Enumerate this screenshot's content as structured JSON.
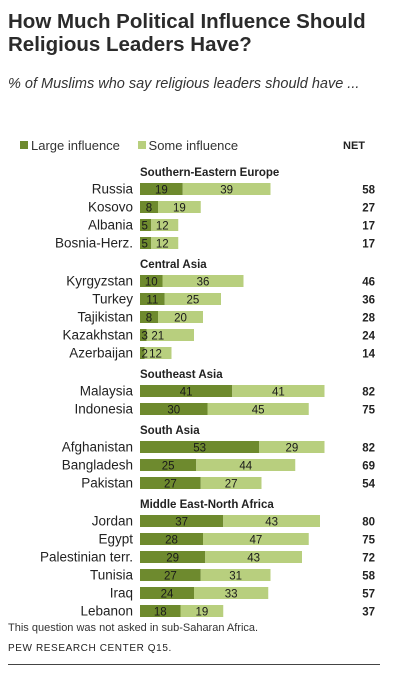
{
  "title": "How Much Political Influence Should Religious Leaders Have?",
  "subtitle": "% of Muslims who say religious leaders should have ...",
  "net_label": "NET",
  "footnote": "This question was not asked in sub-Saharan Africa.",
  "source": "PEW RESEARCH CENTER Q15.",
  "colors": {
    "large": "#6e8a2e",
    "some": "#b8cf7e",
    "text": "#222222"
  },
  "chart_data": {
    "type": "bar",
    "stacked": true,
    "orientation": "horizontal",
    "legend": {
      "position": "top-left",
      "entries": [
        "Large influence",
        "Some influence"
      ]
    },
    "series": [
      {
        "name": "Large influence",
        "values": [
          19,
          8,
          5,
          5,
          10,
          11,
          8,
          3,
          2,
          41,
          30,
          53,
          25,
          27,
          37,
          28,
          29,
          27,
          24,
          18
        ]
      },
      {
        "name": "Some influence",
        "values": [
          39,
          19,
          12,
          12,
          36,
          25,
          20,
          21,
          12,
          41,
          45,
          29,
          44,
          27,
          43,
          47,
          43,
          31,
          33,
          19
        ]
      }
    ],
    "groups": [
      {
        "name": "Southern-Eastern Europe",
        "rows": [
          {
            "country": "Russia",
            "large": 19,
            "some": 39,
            "net": 58
          },
          {
            "country": "Kosovo",
            "large": 8,
            "some": 19,
            "net": 27
          },
          {
            "country": "Albania",
            "large": 5,
            "some": 12,
            "net": 17
          },
          {
            "country": "Bosnia-Herz.",
            "large": 5,
            "some": 12,
            "net": 17
          }
        ]
      },
      {
        "name": "Central Asia",
        "rows": [
          {
            "country": "Kyrgyzstan",
            "large": 10,
            "some": 36,
            "net": 46
          },
          {
            "country": "Turkey",
            "large": 11,
            "some": 25,
            "net": 36
          },
          {
            "country": "Tajikistan",
            "large": 8,
            "some": 20,
            "net": 28
          },
          {
            "country": "Kazakhstan",
            "large": 3,
            "some": 21,
            "net": 24
          },
          {
            "country": "Azerbaijan",
            "large": 2,
            "some": 12,
            "net": 14
          }
        ]
      },
      {
        "name": "Southeast Asia",
        "rows": [
          {
            "country": "Malaysia",
            "large": 41,
            "some": 41,
            "net": 82
          },
          {
            "country": "Indonesia",
            "large": 30,
            "some": 45,
            "net": 75
          }
        ]
      },
      {
        "name": "South Asia",
        "rows": [
          {
            "country": "Afghanistan",
            "large": 53,
            "some": 29,
            "net": 82
          },
          {
            "country": "Bangladesh",
            "large": 25,
            "some": 44,
            "net": 69
          },
          {
            "country": "Pakistan",
            "large": 27,
            "some": 27,
            "net": 54
          }
        ]
      },
      {
        "name": "Middle East-North Africa",
        "rows": [
          {
            "country": "Jordan",
            "large": 37,
            "some": 43,
            "net": 80
          },
          {
            "country": "Egypt",
            "large": 28,
            "some": 47,
            "net": 75
          },
          {
            "country": "Palestinian terr.",
            "large": 29,
            "some": 43,
            "net": 72
          },
          {
            "country": "Tunisia",
            "large": 27,
            "some": 31,
            "net": 58
          },
          {
            "country": "Iraq",
            "large": 24,
            "some": 33,
            "net": 57
          },
          {
            "country": "Lebanon",
            "large": 18,
            "some": 19,
            "net": 37
          }
        ]
      }
    ]
  }
}
